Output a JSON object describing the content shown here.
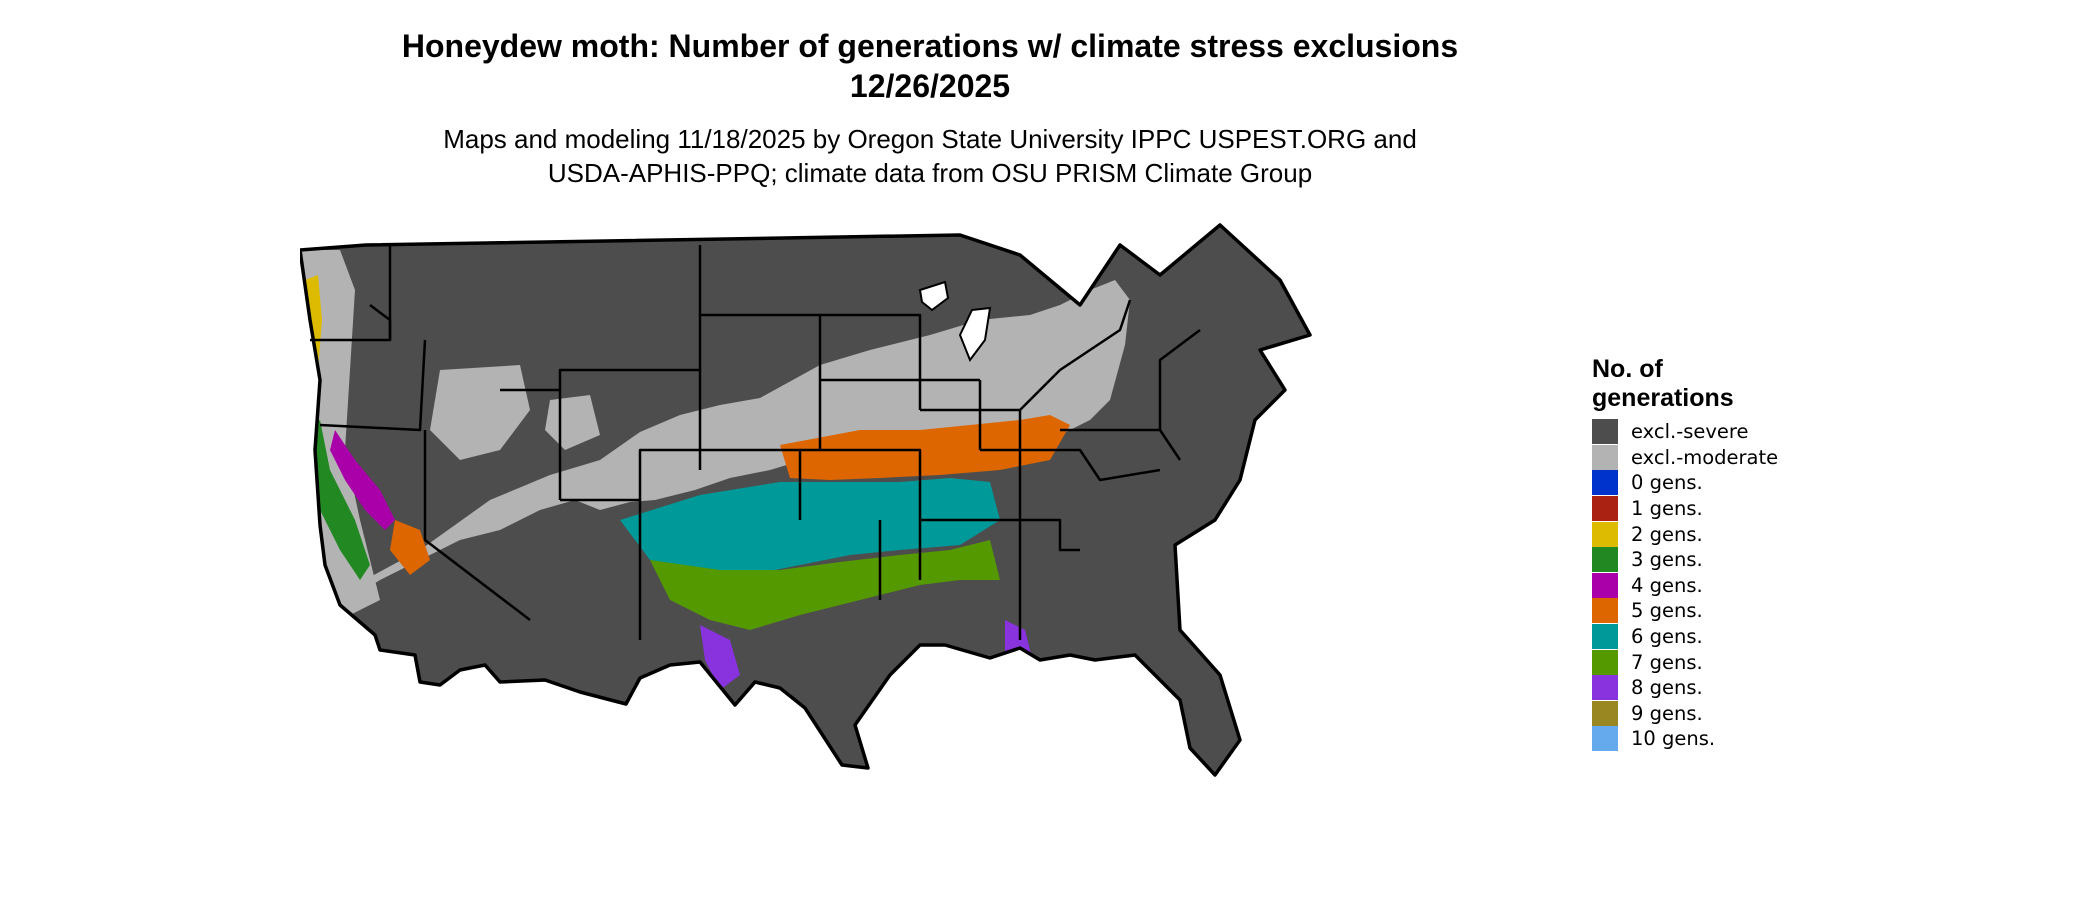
{
  "title": {
    "line1": "Honeydew moth: Number of generations w/ climate stress exclusions",
    "line2": "12/26/2025"
  },
  "subtitle": {
    "line1": "Maps and modeling 11/18/2025 by Oregon State University IPPC USPEST.ORG and",
    "line2": "USDA-APHIS-PPQ; climate data from OSU PRISM Climate Group"
  },
  "legend": {
    "title_line1": "No. of",
    "title_line2": "generations",
    "items": [
      {
        "label": "excl.-severe",
        "color": "#4d4d4d"
      },
      {
        "label": "excl.-moderate",
        "color": "#b3b3b3"
      },
      {
        "label": "0 gens.",
        "color": "#0033cc"
      },
      {
        "label": "1 gens.",
        "color": "#aa2211"
      },
      {
        "label": "2 gens.",
        "color": "#ddbb00"
      },
      {
        "label": "3 gens.",
        "color": "#228822"
      },
      {
        "label": "4 gens.",
        "color": "#aa00aa"
      },
      {
        "label": "5 gens.",
        "color": "#dd6600"
      },
      {
        "label": "6 gens.",
        "color": "#009999"
      },
      {
        "label": "7 gens.",
        "color": "#559900"
      },
      {
        "label": "8 gens.",
        "color": "#8833dd"
      },
      {
        "label": "9 gens.",
        "color": "#998822"
      },
      {
        "label": "10 gens.",
        "color": "#66aaee"
      }
    ]
  }
}
